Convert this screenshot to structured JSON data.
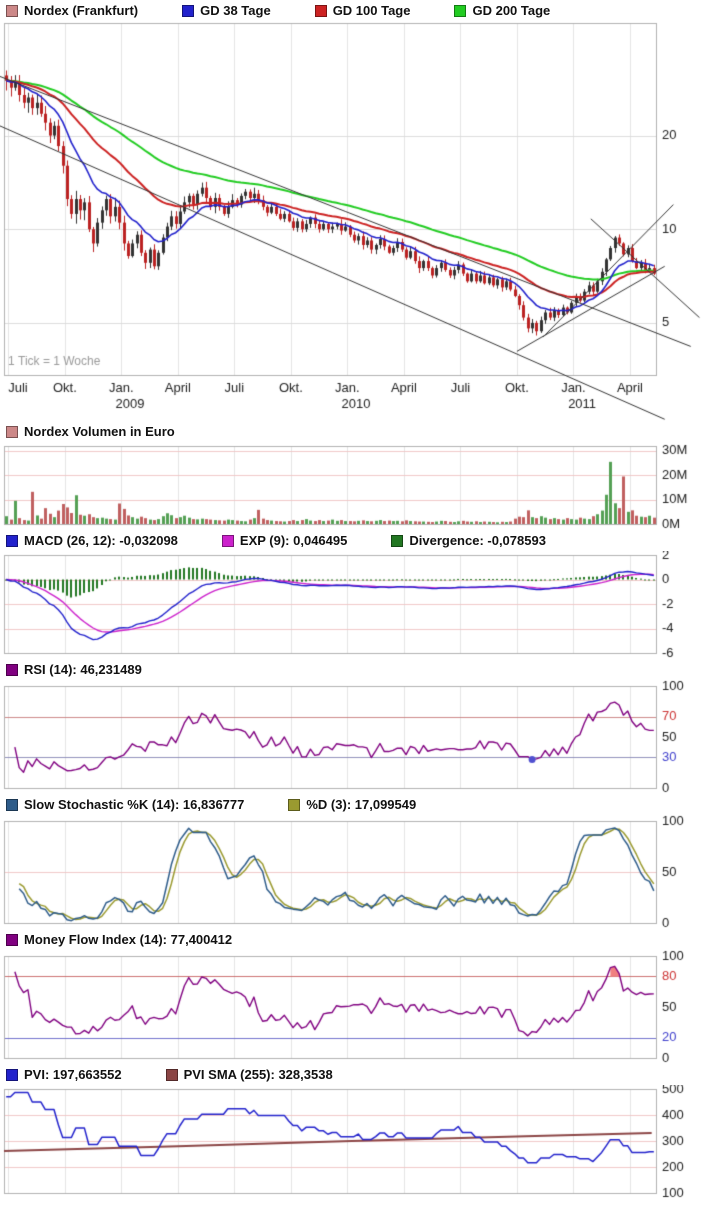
{
  "footnote": "1 Tick = 1 Woche",
  "legends": {
    "main": [
      {
        "label": "Nordex (Frankfurt)",
        "color": "#cc8888"
      },
      {
        "label": "GD 38 Tage",
        "color": "#2222cc"
      },
      {
        "label": "GD 100 Tage",
        "color": "#cc2222"
      },
      {
        "label": "GD 200 Tage",
        "color": "#22cc22"
      }
    ],
    "volume": [
      {
        "label": "Nordex Volumen in Euro",
        "color": "#cc8888"
      }
    ],
    "macd": [
      {
        "label": "MACD (26, 12): -0,032098",
        "color": "#2222cc"
      },
      {
        "label": "EXP (9): 0,046495",
        "color": "#cc22cc"
      },
      {
        "label": "Divergence: -0,078593",
        "color": "#227722"
      }
    ],
    "rsi": [
      {
        "label": "RSI (14): 46,231489",
        "color": "#800080"
      }
    ],
    "stoch": [
      {
        "label": "Slow Stochastic %K (14): 16,836777",
        "color": "#2e5c8a"
      },
      {
        "label": "%D (3): 17,099549",
        "color": "#9a9a30"
      }
    ],
    "mfi": [
      {
        "label": "Money Flow Index (14): 77,400412",
        "color": "#800080"
      }
    ],
    "pvi": [
      {
        "label": "PVI: 197,663552",
        "color": "#2222cc"
      },
      {
        "label": "PVI SMA (255): 328,3538",
        "color": "#8b4545"
      }
    ]
  },
  "colors": {
    "candle_up": "#333333",
    "candle_down": "#bb2222",
    "vol_up": "#55a055",
    "vol_down": "#c06060",
    "gd38": "#2222cc",
    "gd100": "#cc2222",
    "gd200": "#22cc22",
    "macd": "#2222cc",
    "macd_signal": "#cc22cc",
    "macd_hist": "#227722",
    "rsi": "#800080",
    "rsi_upper": "#cc8888",
    "rsi_lower": "#9090bb",
    "stoch_k": "#2e5c8a",
    "stoch_d": "#9a9a30",
    "mfi": "#800080",
    "mfi_upper": "#cc7070",
    "mfi_lower": "#7070cc",
    "mfi_fill": "#f08080",
    "pvi": "#2222cc",
    "pvi_sma": "#8b4545",
    "grid_v": "#e4e4e4",
    "grid_h_main": "#dcdcdc",
    "grid_pink": "#f0c8c8",
    "frame": "#b0b0b0",
    "trendline": "#333333",
    "marker": "#5050d0",
    "label": "#222222",
    "label_red": "#cc3333",
    "label_blue": "#4040cc",
    "footnote": "#9a9a9a"
  },
  "chart_data": {
    "type": "multi-panel-technical",
    "x_unit": "1 week per tick",
    "xticks": [
      {
        "w": 1,
        "label": "Juli"
      },
      {
        "w": 14,
        "label": "Okt."
      },
      {
        "w": 27,
        "label": "Jan."
      },
      {
        "w": 40,
        "label": "April"
      },
      {
        "w": 53,
        "label": "Juli"
      },
      {
        "w": 66,
        "label": "Okt."
      },
      {
        "w": 79,
        "label": "Jan."
      },
      {
        "w": 92,
        "label": "April"
      },
      {
        "w": 105,
        "label": "Juli"
      },
      {
        "w": 118,
        "label": "Okt."
      },
      {
        "w": 131,
        "label": "Jan."
      },
      {
        "w": 144,
        "label": "April"
      }
    ],
    "year_labels": [
      {
        "w": 29,
        "label": "2009"
      },
      {
        "w": 81,
        "label": "2010"
      },
      {
        "w": 133,
        "label": "2011"
      }
    ],
    "price": {
      "type": "candlestick",
      "scale": "log",
      "ylim": [
        3.4,
        46
      ],
      "yticks": [
        20,
        10,
        5
      ],
      "ma": [
        {
          "label": "GD 38 Tage",
          "period": 38,
          "render_ema": 11
        },
        {
          "label": "GD 100 Tage",
          "period": 100,
          "render_ema": 26
        },
        {
          "label": "GD 200 Tage",
          "period": 200,
          "render_ema": 48
        }
      ],
      "trendlines": [
        [
          -1,
          31,
          158,
          4.2
        ],
        [
          -1,
          21.5,
          152,
          2.45
        ],
        [
          118,
          4.05,
          152,
          7.6
        ],
        [
          124,
          4.5,
          154,
          12.0
        ],
        [
          135,
          10.8,
          160,
          5.2
        ]
      ],
      "closes": [
        30.0,
        28.5,
        29.5,
        27.0,
        25.5,
        26.5,
        24.5,
        25.5,
        23.5,
        22.0,
        20.0,
        21.5,
        18.5,
        16.0,
        12.5,
        11.2,
        12.5,
        11.5,
        12.2,
        10.0,
        9.0,
        10.5,
        11.5,
        12.5,
        11.0,
        11.8,
        10.5,
        9.0,
        8.2,
        9.0,
        9.6,
        8.4,
        7.8,
        8.6,
        7.6,
        8.4,
        9.4,
        10.2,
        11.0,
        10.4,
        11.4,
        12.2,
        12.8,
        12.0,
        13.0,
        13.6,
        12.6,
        11.8,
        12.6,
        11.8,
        11.2,
        11.8,
        12.4,
        12.0,
        12.8,
        13.2,
        12.6,
        13.0,
        12.4,
        11.8,
        11.3,
        11.8,
        11.2,
        10.8,
        11.2,
        10.6,
        10.1,
        10.6,
        10.0,
        10.4,
        10.9,
        10.4,
        10.0,
        10.4,
        10.0,
        10.2,
        10.4,
        9.9,
        10.2,
        9.6,
        9.2,
        9.5,
        8.9,
        9.2,
        8.6,
        8.9,
        9.3,
        8.8,
        8.4,
        8.7,
        9.1,
        8.6,
        8.1,
        8.5,
        7.9,
        7.5,
        7.9,
        7.5,
        7.1,
        7.5,
        7.8,
        7.4,
        7.1,
        7.4,
        7.7,
        7.2,
        6.8,
        7.2,
        6.8,
        7.1,
        6.7,
        7.0,
        6.6,
        6.9,
        6.5,
        6.8,
        6.4,
        6.1,
        5.7,
        5.2,
        4.8,
        5.0,
        4.7,
        5.1,
        5.4,
        5.2,
        5.5,
        5.3,
        5.6,
        5.4,
        5.8,
        6.1,
        5.9,
        6.3,
        6.6,
        6.3,
        6.8,
        7.3,
        8.0,
        8.7,
        9.4,
        9.0,
        8.3,
        8.7,
        7.9,
        7.5,
        7.8,
        7.4,
        7.5,
        7.2
      ]
    },
    "volume": {
      "type": "bar",
      "unit": "million EUR",
      "ymax": 32,
      "yticks": [
        {
          "v": 30,
          "label": "30M"
        },
        {
          "v": 20,
          "label": "20M"
        },
        {
          "v": 10,
          "label": "10M"
        },
        {
          "v": 0,
          "label": "0M"
        }
      ],
      "values": [
        3.2,
        1.8,
        9.5,
        2.4,
        1.6,
        1.4,
        13.2,
        3.5,
        2.2,
        6.5,
        4.2,
        2.8,
        5.5,
        8.2,
        6.8,
        4.5,
        11.8,
        3.8,
        3.4,
        4.0,
        2.8,
        2.4,
        2.6,
        2.2,
        2.0,
        1.8,
        8.4,
        6.2,
        3.5,
        2.8,
        2.2,
        3.0,
        2.4,
        1.8,
        1.6,
        2.0,
        3.2,
        4.4,
        3.6,
        2.4,
        2.8,
        3.4,
        2.6,
        2.0,
        1.9,
        2.2,
        2.0,
        1.8,
        1.6,
        1.5,
        1.4,
        1.8,
        1.6,
        1.4,
        1.2,
        1.1,
        1.8,
        2.4,
        5.8,
        2.2,
        1.6,
        1.4,
        1.2,
        1.1,
        1.0,
        1.2,
        1.6,
        1.2,
        1.6,
        2.0,
        1.4,
        1.2,
        1.6,
        1.2,
        1.4,
        1.8,
        1.3,
        1.6,
        1.2,
        1.2,
        1.1,
        1.3,
        1.5,
        1.2,
        1.1,
        1.3,
        1.6,
        1.2,
        1.4,
        1.2,
        1.3,
        1.1,
        1.5,
        1.2,
        1.1,
        1.0,
        1.0,
        0.9,
        0.8,
        1.0,
        1.3,
        1.2,
        0.9,
        0.8,
        1.1,
        1.3,
        1.0,
        0.9,
        1.1,
        0.8,
        1.0,
        0.9,
        0.8,
        0.7,
        0.9,
        0.8,
        1.0,
        2.2,
        3.0,
        2.8,
        5.6,
        2.8,
        2.4,
        3.2,
        2.6,
        2.0,
        2.4,
        2.0,
        1.8,
        2.4,
        2.0,
        1.8,
        2.6,
        2.2,
        2.0,
        3.2,
        4.0,
        5.5,
        12.0,
        25.5,
        8.5,
        6.5,
        19.5,
        5.0,
        5.6,
        3.4,
        3.0,
        2.8,
        3.4,
        2.6
      ]
    },
    "macd": {
      "type": "line+histogram",
      "params": [
        26,
        12,
        9
      ],
      "ylim": [
        -6,
        2
      ],
      "yticks": [
        2,
        0,
        -2,
        -4,
        -6
      ]
    },
    "rsi": {
      "type": "line",
      "period": 14,
      "levels": {
        "upper": 70,
        "lower": 30
      },
      "yticks": [
        {
          "v": 100,
          "c": "label"
        },
        {
          "v": 70,
          "c": "label_red"
        },
        {
          "v": 50,
          "c": "label"
        },
        {
          "v": 30,
          "c": "label_blue"
        },
        {
          "v": 0,
          "c": "label"
        }
      ]
    },
    "stoch": {
      "type": "line",
      "periods": [
        14,
        3
      ],
      "yticks": [
        100,
        50,
        0
      ]
    },
    "mfi": {
      "type": "line",
      "period": 14,
      "levels": {
        "upper": 80,
        "lower": 20
      },
      "yticks": [
        {
          "v": 100,
          "c": "label"
        },
        {
          "v": 80,
          "c": "label_red"
        },
        {
          "v": 50,
          "c": "label"
        },
        {
          "v": 20,
          "c": "label_blue"
        },
        {
          "v": 0,
          "c": "label"
        }
      ]
    },
    "pvi": {
      "type": "line",
      "ylim": [
        100,
        500
      ],
      "yticks": [
        500,
        400,
        300,
        200,
        100
      ],
      "start": 470,
      "sma_points": [
        [
          0,
          262
        ],
        [
          40,
          280
        ],
        [
          80,
          300
        ],
        [
          120,
          318
        ],
        [
          149,
          331
        ]
      ]
    }
  }
}
